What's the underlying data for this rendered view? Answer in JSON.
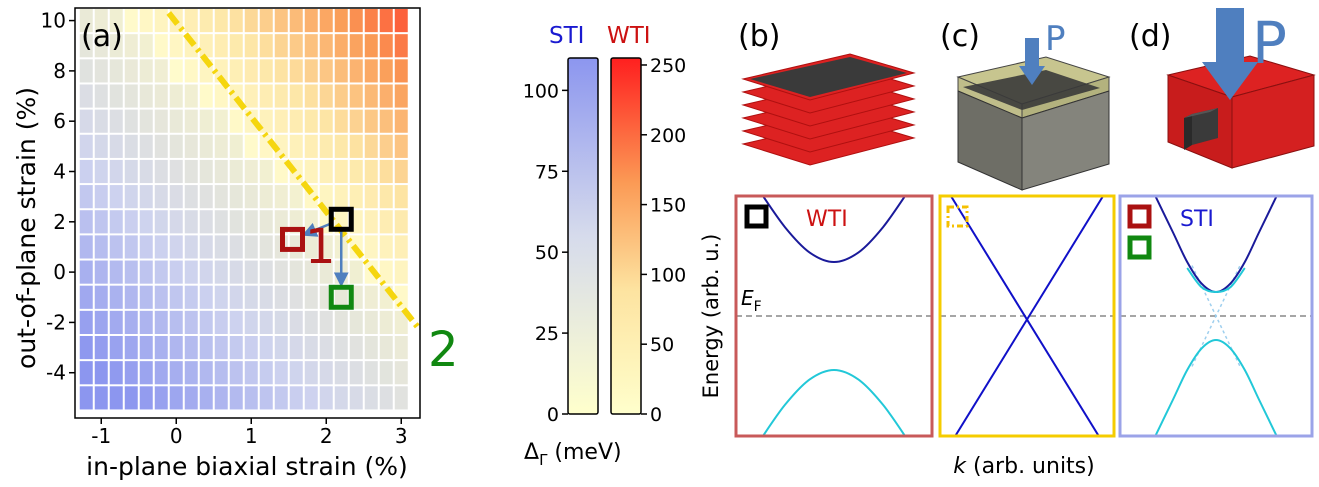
{
  "panel_labels": {
    "a": "(a)",
    "b": "(b)",
    "c": "(c)",
    "d": "(d)"
  },
  "pressure_label": "P",
  "colorbar": {
    "sti_label": "STI",
    "wti_label": "WTI",
    "unit_label_prefix": "Δ",
    "unit_label_sub": "Γ",
    "unit_label_suffix": " (meV)",
    "sti_color": "#1a1ad0",
    "wti_color": "#cc1111"
  },
  "band_panels": {
    "ylabel": "Energy (arb. u.)",
    "xlabel_italic": "k",
    "xlabel_rest": " (arb. units)",
    "fermi_label_main": "E",
    "fermi_label_sub": "F",
    "wti_label": "WTI",
    "sti_label": "STI"
  },
  "markers": {
    "label_1": "1",
    "label_2": "2"
  },
  "chart_data": [
    {
      "type": "heatmap",
      "title": "",
      "xlabel": "in-plane biaxial strain (%)",
      "ylabel": "out-of-plane strain (%)",
      "xlim": [
        -1.35,
        3.25
      ],
      "ylim": [
        -5.8,
        10.5
      ],
      "xticks": [
        "-1",
        "0",
        "1",
        "2",
        "3"
      ],
      "xtick_values": [
        -1,
        0,
        1,
        2,
        3
      ],
      "yticks": [
        "-4",
        "-2",
        "0",
        "2",
        "4",
        "6",
        "8",
        "10"
      ],
      "ytick_values": [
        -4,
        -2,
        0,
        2,
        4,
        6,
        8,
        10
      ],
      "x_centers": [
        -1.2,
        -1.0,
        -0.8,
        -0.6,
        -0.4,
        -0.2,
        0.0,
        0.2,
        0.4,
        0.6,
        0.8,
        1.0,
        1.2,
        1.4,
        1.6,
        1.8,
        2.0,
        2.2,
        2.4,
        2.6,
        2.8,
        3.0
      ],
      "y_centers": [
        -5.0,
        -4.0,
        -3.0,
        -2.0,
        -1.0,
        0.0,
        1.0,
        2.0,
        3.0,
        4.0,
        5.0,
        6.0,
        7.0,
        8.0,
        9.0,
        10.0
      ],
      "cell_value_model": "value ∝ distance from the phase boundary line y = 8.0 - 3.12 x (in %)",
      "phase_boundary": {
        "x": [
          -0.1,
          3.25
        ],
        "y": [
          10.3,
          -2.3
        ],
        "style": "dash-dot",
        "color": "#f5d60f"
      },
      "markers": [
        {
          "label": "",
          "x": 2.2,
          "y": 2.1,
          "color": "#000000"
        },
        {
          "label": "1",
          "x": 1.55,
          "y": 1.3,
          "color": "#aa1111"
        },
        {
          "label": "2",
          "x": 2.2,
          "y": -1.0,
          "color": "#118811"
        }
      ],
      "arrows": [
        {
          "from": [
            2.2,
            2.1
          ],
          "to": [
            1.55,
            1.3
          ]
        },
        {
          "from": [
            2.2,
            2.1
          ],
          "to": [
            2.2,
            -1.0
          ]
        }
      ]
    },
    {
      "type": "heatmap",
      "title": "STI",
      "orientation": "vertical colorbar",
      "ylim": [
        0,
        110
      ],
      "ticks": [
        "0",
        "25",
        "50",
        "75",
        "100"
      ],
      "tick_values": [
        0,
        25,
        50,
        75,
        100
      ],
      "color_low": "#ffffcc",
      "color_high": "#8c96ef"
    },
    {
      "type": "heatmap",
      "title": "WTI",
      "orientation": "vertical colorbar",
      "ylim": [
        0,
        255
      ],
      "ticks": [
        "0",
        "50",
        "100",
        "150",
        "200",
        "250"
      ],
      "tick_values": [
        0,
        50,
        100,
        150,
        200,
        250
      ],
      "color_low": "#ffffcc",
      "color_high": "#ff1f1f"
    },
    {
      "type": "line",
      "title": "WTI",
      "xlim": [
        -1,
        1
      ],
      "ylim": [
        -1,
        1
      ],
      "fermi_level": 0,
      "series": [
        {
          "color": "#1a1a9a",
          "x": [
            -0.75,
            -0.5,
            -0.25,
            0.0,
            0.25,
            0.5,
            0.75
          ],
          "y": [
            1.03,
            0.74,
            0.53,
            0.45,
            0.53,
            0.74,
            1.03
          ]
        },
        {
          "color": "#22c8d8",
          "x": [
            -0.75,
            -0.5,
            -0.25,
            0.0,
            0.25,
            0.5,
            0.75
          ],
          "y": [
            -1.03,
            -0.74,
            -0.53,
            -0.45,
            -0.53,
            -0.74,
            -1.03
          ]
        }
      ]
    },
    {
      "type": "line",
      "title": "",
      "xlim": [
        -1,
        1
      ],
      "ylim": [
        -1,
        1
      ],
      "fermi_level": 0,
      "series": [
        {
          "color": "#1010c8",
          "x": [
            -0.9,
            0.85
          ],
          "y": [
            1.03,
            -1.03
          ]
        },
        {
          "color": "#1010c8",
          "x": [
            -0.85,
            0.9
          ],
          "y": [
            -1.03,
            1.03
          ]
        }
      ]
    },
    {
      "type": "line",
      "title": "STI",
      "xlim": [
        -1,
        1
      ],
      "ylim": [
        -1,
        1
      ],
      "fermi_level": 0,
      "series": [
        {
          "color": "#1a1a9a",
          "x": [
            -0.65,
            -0.45,
            -0.3,
            -0.15,
            0.0,
            0.15,
            0.3,
            0.45,
            0.65
          ],
          "y": [
            1.03,
            0.7,
            0.45,
            0.27,
            0.2,
            0.27,
            0.45,
            0.7,
            1.03
          ]
        },
        {
          "color": "#22c8d8",
          "x": [
            -0.3,
            -0.15,
            0.0,
            0.15,
            0.3
          ],
          "y": [
            0.4,
            0.24,
            0.2,
            0.24,
            0.4
          ]
        },
        {
          "color": "#22c8d8",
          "x": [
            -0.65,
            -0.45,
            -0.3,
            -0.15,
            0.0,
            0.15,
            0.3,
            0.45,
            0.65
          ],
          "y": [
            -1.03,
            -0.7,
            -0.45,
            -0.27,
            -0.2,
            -0.27,
            -0.45,
            -0.7,
            -1.03
          ]
        }
      ]
    }
  ]
}
